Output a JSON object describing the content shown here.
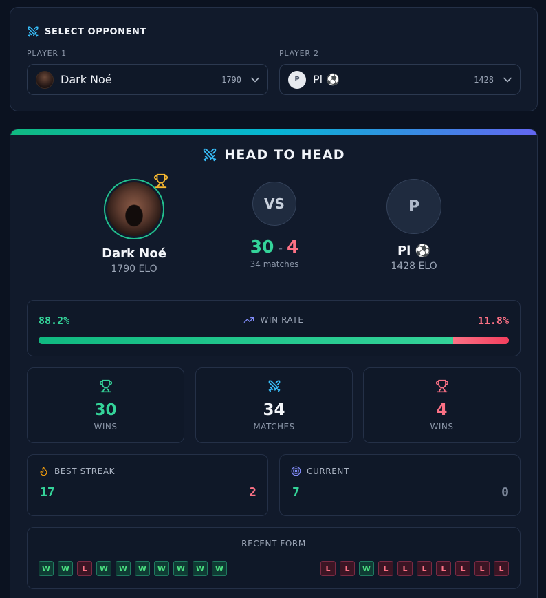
{
  "select": {
    "title": "SELECT OPPONENT",
    "player1_label": "PLAYER 1",
    "player2_label": "PLAYER 2",
    "player1": {
      "name": "Dark Noé",
      "elo": "1790"
    },
    "player2": {
      "name": "Pl ⚽",
      "elo": "1428",
      "initial": "P"
    }
  },
  "h2h": {
    "title": "HEAD TO HEAD",
    "player1": {
      "name": "Dark Noé",
      "elo": "1790 ELO"
    },
    "player2": {
      "name": "Pl ⚽",
      "elo": "1428 ELO",
      "initial": "P"
    },
    "vs": "VS",
    "score1": "30",
    "score_sep": "-",
    "score2": "4",
    "matches": "34 matches"
  },
  "win_rate": {
    "label": "WIN RATE",
    "left": "88.2%",
    "right": "11.8%",
    "left_fraction": 0.882
  },
  "stats": [
    {
      "value": "30",
      "label": "WINS",
      "color": "#34d399",
      "icon": "trophy-icon"
    },
    {
      "value": "34",
      "label": "MATCHES",
      "color": "#f4f6fa",
      "icon": "swords-icon"
    },
    {
      "value": "4",
      "label": "WINS",
      "color": "#fb7185",
      "icon": "trophy-icon"
    }
  ],
  "streaks": {
    "best": {
      "label": "BEST STREAK",
      "left": "17",
      "right": "2",
      "icon": "flame-icon"
    },
    "current": {
      "label": "CURRENT",
      "left": "7",
      "right": "0",
      "icon": "target-icon"
    }
  },
  "recent_form": {
    "title": "RECENT FORM",
    "player1": [
      "W",
      "W",
      "L",
      "W",
      "W",
      "W",
      "W",
      "W",
      "W",
      "W"
    ],
    "player2": [
      "L",
      "L",
      "W",
      "L",
      "L",
      "L",
      "L",
      "L",
      "L",
      "L"
    ]
  },
  "colors": {
    "win": "#34d399",
    "loss": "#fb7185",
    "accent_gradient": [
      "#10b981",
      "#06b6d4",
      "#6366f1"
    ]
  }
}
